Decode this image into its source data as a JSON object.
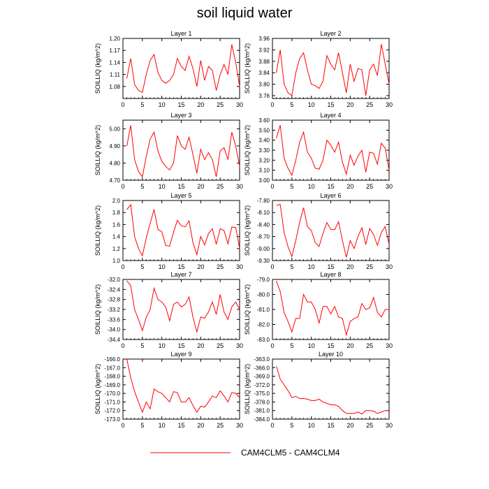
{
  "title": "soil liquid water",
  "legend": {
    "label": "CAM4CLM5 - CAM4CLM4",
    "color": "#ff0000",
    "placement": "bottom-center"
  },
  "chart_data": [
    {
      "type": "line",
      "title": "Layer 1",
      "ylabel": "SOILLIQ  (kg/m^2)",
      "xlim": [
        0,
        30
      ],
      "ylim": [
        1.05,
        1.2
      ],
      "xticks": [
        "0",
        "5",
        "10",
        "15",
        "20",
        "25",
        "30"
      ],
      "yticks": [
        "1.08",
        "1.11",
        "1.14",
        "1.17",
        "1.20"
      ],
      "series": [
        {
          "values": [
            1.1,
            1.15,
            1.085,
            1.07,
            1.065,
            1.11,
            1.145,
            1.16,
            1.115,
            1.095,
            1.088,
            1.095,
            1.11,
            1.15,
            1.13,
            1.12,
            1.155,
            1.125,
            1.08,
            1.145,
            1.095,
            1.13,
            1.12,
            1.07,
            1.11,
            1.135,
            1.11,
            1.185,
            1.14,
            1.08
          ]
        }
      ]
    },
    {
      "type": "line",
      "title": "Layer 2",
      "ylabel": "SOILLIQ  (kg/m^2)",
      "xlim": [
        0,
        30
      ],
      "ylim": [
        3.75,
        3.96
      ],
      "xticks": [
        "0",
        "5",
        "10",
        "15",
        "20",
        "25",
        "30"
      ],
      "yticks": [
        "3.76",
        "3.80",
        "3.84",
        "3.88",
        "3.92",
        "3.96"
      ],
      "series": [
        {
          "values": [
            3.84,
            3.92,
            3.8,
            3.77,
            3.76,
            3.84,
            3.89,
            3.91,
            3.85,
            3.8,
            3.795,
            3.785,
            3.81,
            3.9,
            3.87,
            3.85,
            3.91,
            3.84,
            3.77,
            3.87,
            3.81,
            3.855,
            3.85,
            3.76,
            3.85,
            3.87,
            3.83,
            3.94,
            3.87,
            3.8
          ]
        }
      ]
    },
    {
      "type": "line",
      "title": "Layer 3",
      "ylabel": "SOILLIQ  (kg/m^2)",
      "xlim": [
        0,
        30
      ],
      "ylim": [
        4.7,
        5.05
      ],
      "xticks": [
        "0",
        "5",
        "10",
        "15",
        "20",
        "25",
        "30"
      ],
      "yticks": [
        "4.70",
        "4.80",
        "4.90",
        "5.00"
      ],
      "series": [
        {
          "values": [
            4.9,
            5.02,
            4.82,
            4.75,
            4.72,
            4.84,
            4.94,
            4.98,
            4.87,
            4.81,
            4.78,
            4.76,
            4.8,
            4.96,
            4.9,
            4.88,
            4.95,
            4.85,
            4.74,
            4.88,
            4.82,
            4.86,
            4.82,
            4.72,
            4.87,
            4.89,
            4.82,
            4.98,
            4.9,
            4.78
          ]
        }
      ]
    },
    {
      "type": "line",
      "title": "Layer 4",
      "ylabel": "SOILLIQ  (kg/m^2)",
      "xlim": [
        0,
        30
      ],
      "ylim": [
        3.0,
        3.6
      ],
      "xticks": [
        "0",
        "5",
        "10",
        "15",
        "20",
        "25",
        "30"
      ],
      "yticks": [
        "3.00",
        "3.10",
        "3.20",
        "3.30",
        "3.40",
        "3.50",
        "3.60"
      ],
      "series": [
        {
          "values": [
            3.42,
            3.55,
            3.22,
            3.12,
            3.05,
            3.2,
            3.38,
            3.48,
            3.28,
            3.22,
            3.12,
            3.11,
            3.2,
            3.4,
            3.35,
            3.28,
            3.38,
            3.18,
            3.06,
            3.25,
            3.15,
            3.24,
            3.3,
            3.08,
            3.28,
            3.27,
            3.16,
            3.37,
            3.32,
            3.1
          ]
        }
      ]
    },
    {
      "type": "line",
      "title": "Layer 5",
      "ylabel": "SOILLIQ  (kg/m^2)",
      "xlim": [
        0,
        30
      ],
      "ylim": [
        1.0,
        2.0
      ],
      "xticks": [
        "0",
        "5",
        "10",
        "15",
        "20",
        "25",
        "30"
      ],
      "yticks": [
        "1.0",
        "1.2",
        "1.4",
        "1.6",
        "1.8",
        "2.0"
      ],
      "series": [
        {
          "values": [
            1.85,
            1.93,
            1.4,
            1.2,
            1.08,
            1.38,
            1.62,
            1.85,
            1.52,
            1.48,
            1.25,
            1.24,
            1.47,
            1.67,
            1.58,
            1.56,
            1.66,
            1.3,
            1.1,
            1.4,
            1.26,
            1.45,
            1.53,
            1.27,
            1.53,
            1.5,
            1.28,
            1.56,
            1.55,
            1.2
          ]
        }
      ]
    },
    {
      "type": "line",
      "title": "Layer 6",
      "ylabel": "SOILLIQ  (kg/m^2)",
      "xlim": [
        0,
        30
      ],
      "ylim": [
        -9.3,
        -7.8
      ],
      "xticks": [
        "0",
        "5",
        "10",
        "15",
        "20",
        "25",
        "30"
      ],
      "yticks": [
        "-9.30",
        "-9.00",
        "-8.70",
        "-8.40",
        "-8.10",
        "-7.80"
      ],
      "series": [
        {
          "values": [
            -7.92,
            -7.9,
            -8.6,
            -8.95,
            -9.2,
            -8.8,
            -8.35,
            -7.98,
            -8.45,
            -8.55,
            -8.85,
            -8.95,
            -8.62,
            -8.35,
            -8.52,
            -8.53,
            -8.33,
            -8.8,
            -9.22,
            -8.8,
            -9.0,
            -8.7,
            -8.48,
            -8.9,
            -8.5,
            -8.65,
            -8.92,
            -8.6,
            -8.45,
            -8.9
          ]
        }
      ]
    },
    {
      "type": "line",
      "title": "Layer 7",
      "ylabel": "SOILLIQ  (kg/m^2)",
      "xlim": [
        0,
        30
      ],
      "ylim": [
        -34.4,
        -32.0
      ],
      "xticks": [
        "0",
        "5",
        "10",
        "15",
        "20",
        "25",
        "30"
      ],
      "yticks": [
        "-34.4",
        "-34.0",
        "-33.6",
        "-33.2",
        "-32.8",
        "-32.4",
        "-32.0"
      ],
      "series": [
        {
          "values": [
            -32.05,
            -32.25,
            -33.2,
            -33.6,
            -34.05,
            -33.5,
            -33.2,
            -32.35,
            -32.8,
            -32.9,
            -33.1,
            -33.65,
            -33.0,
            -32.9,
            -33.1,
            -33.0,
            -32.7,
            -33.5,
            -34.1,
            -33.5,
            -33.55,
            -33.3,
            -32.9,
            -33.4,
            -32.6,
            -33.3,
            -33.6,
            -33.1,
            -32.9,
            -33.2
          ]
        }
      ]
    },
    {
      "type": "line",
      "title": "Layer 8",
      "ylabel": "SOILLIQ  (kg/m^2)",
      "xlim": [
        0,
        30
      ],
      "ylim": [
        -83.0,
        -79.0
      ],
      "xticks": [
        "0",
        "5",
        "10",
        "15",
        "20",
        "25",
        "30"
      ],
      "yticks": [
        "-83.0",
        "-82.0",
        "-81.0",
        "-80.0",
        "-79.0"
      ],
      "series": [
        {
          "values": [
            -79.1,
            -79.8,
            -81.2,
            -81.8,
            -82.5,
            -81.6,
            -81.6,
            -80.0,
            -80.5,
            -80.5,
            -81.0,
            -81.9,
            -80.8,
            -80.8,
            -81.3,
            -80.8,
            -81.5,
            -81.6,
            -82.7,
            -81.8,
            -81.6,
            -81.5,
            -80.6,
            -81.0,
            -80.9,
            -80.2,
            -81.2,
            -81.5,
            -81.0,
            -81.0
          ]
        }
      ]
    },
    {
      "type": "line",
      "title": "Layer 9",
      "ylabel": "SOILLIQ  (kg/m^2)",
      "xlim": [
        0,
        30
      ],
      "ylim": [
        -173.0,
        -166.0
      ],
      "xticks": [
        "0",
        "5",
        "10",
        "15",
        "20",
        "25",
        "30"
      ],
      "yticks": [
        "-173.0",
        "-172.0",
        "-171.0",
        "-170.0",
        "-169.0",
        "-168.0",
        "-167.0",
        "-166.0"
      ],
      "series": [
        {
          "values": [
            -166.0,
            -168.2,
            -169.8,
            -171.0,
            -172.2,
            -171.0,
            -171.8,
            -169.5,
            -169.8,
            -170.0,
            -170.5,
            -171.0,
            -169.8,
            -169.9,
            -171.0,
            -171.0,
            -170.5,
            -171.4,
            -172.2,
            -171.5,
            -171.6,
            -171.0,
            -170.3,
            -170.5,
            -169.7,
            -170.3,
            -171.0,
            -169.9,
            -170.0,
            -170.5
          ]
        }
      ]
    },
    {
      "type": "line",
      "title": "Layer 10",
      "ylabel": "SOILLIQ  (kg/m^2)",
      "xlim": [
        0,
        30
      ],
      "ylim": [
        -384.0,
        -363.0
      ],
      "xticks": [
        "0",
        "5",
        "10",
        "15",
        "20",
        "25",
        "30"
      ],
      "yticks": [
        "-384.0",
        "-381.0",
        "-378.0",
        "-375.0",
        "-372.0",
        "-369.0",
        "-366.0",
        "-363.0"
      ],
      "series": [
        {
          "values": [
            -365.5,
            -370.0,
            -372.0,
            -374.0,
            -376.5,
            -376.0,
            -376.8,
            -376.8,
            -377.0,
            -377.5,
            -377.5,
            -377.0,
            -378.0,
            -378.5,
            -379.0,
            -379.0,
            -379.5,
            -381.0,
            -382.0,
            -382.0,
            -382.0,
            -381.5,
            -382.2,
            -381.0,
            -381.0,
            -381.2,
            -382.0,
            -381.5,
            -381.0,
            -381.0
          ]
        }
      ]
    }
  ]
}
